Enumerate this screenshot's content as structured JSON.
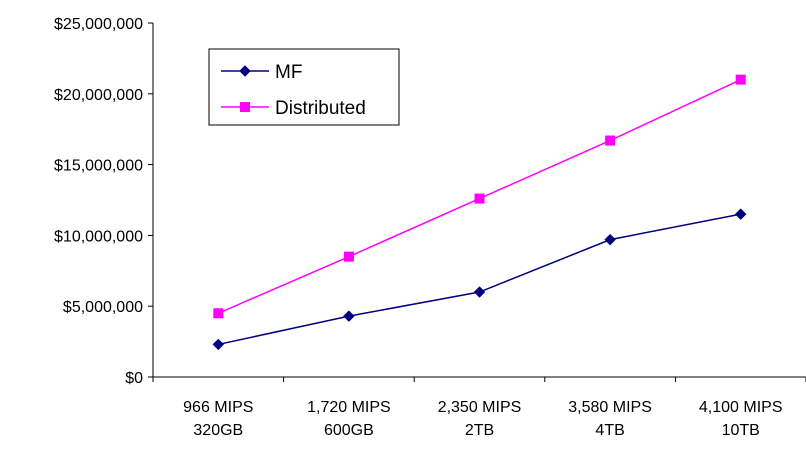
{
  "chart_data": {
    "type": "line",
    "title": "",
    "xlabel": "",
    "ylabel": "",
    "categories": [
      [
        "966 MIPS",
        "320GB"
      ],
      [
        "1,720 MIPS",
        "600GB"
      ],
      [
        "2,350 MIPS",
        "2TB"
      ],
      [
        "3,580 MIPS",
        "4TB"
      ],
      [
        "4,100 MIPS",
        "10TB"
      ]
    ],
    "ylim": [
      0,
      25000000
    ],
    "yticks": [
      0,
      5000000,
      10000000,
      15000000,
      20000000,
      25000000
    ],
    "ytick_labels": [
      "$0",
      "$5,000,000",
      "$10,000,000",
      "$15,000,000",
      "$20,000,000",
      "$25,000,000"
    ],
    "grid": false,
    "legend_position": "top-left",
    "series": [
      {
        "name": "MF",
        "color": "#000080",
        "marker": "diamond",
        "values": [
          2300000,
          4300000,
          6000000,
          9700000,
          11500000
        ]
      },
      {
        "name": "Distributed",
        "color": "#ff00ff",
        "marker": "square",
        "values": [
          4500000,
          8500000,
          12600000,
          16700000,
          21000000
        ]
      }
    ]
  }
}
